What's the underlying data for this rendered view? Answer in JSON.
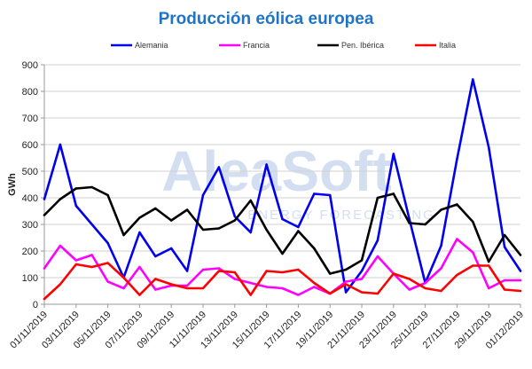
{
  "watermark": {
    "brand": "AleaSoft",
    "tagline": "ENERGY FORECASTING"
  },
  "chart_data": {
    "type": "line",
    "title": "Producción eólica europea",
    "xlabel": "",
    "ylabel": "GWh",
    "ylim": [
      0,
      900
    ],
    "yticks": [
      0,
      100,
      200,
      300,
      400,
      500,
      600,
      700,
      800,
      900
    ],
    "grid": true,
    "legend_position": "top",
    "x": [
      "01/11/2019",
      "02/11/2019",
      "03/11/2019",
      "04/11/2019",
      "05/11/2019",
      "06/11/2019",
      "07/11/2019",
      "08/11/2019",
      "09/11/2019",
      "10/11/2019",
      "11/11/2019",
      "12/11/2019",
      "13/11/2019",
      "14/11/2019",
      "15/11/2019",
      "16/11/2019",
      "17/11/2019",
      "18/11/2019",
      "19/11/2019",
      "20/11/2019",
      "21/11/2019",
      "22/11/2019",
      "23/11/2019",
      "24/11/2019",
      "25/11/2019",
      "26/11/2019",
      "27/11/2019",
      "28/11/2019",
      "29/11/2019",
      "30/11/2019",
      "01/12/2019"
    ],
    "xtick_labels": [
      "01/11/2019",
      "03/11/2019",
      "05/11/2019",
      "07/11/2019",
      "09/11/2019",
      "11/11/2019",
      "13/11/2019",
      "15/11/2019",
      "17/11/2019",
      "19/11/2019",
      "21/11/2019",
      "23/11/2019",
      "25/11/2019",
      "27/11/2019",
      "29/11/2019",
      "01/12/2019"
    ],
    "xtick_values": [
      "01/11/2019",
      "03/11/2019",
      "05/11/2019",
      "07/11/2019",
      "09/11/2019",
      "11/11/2019",
      "13/11/2019",
      "15/11/2019",
      "17/11/2019",
      "19/11/2019",
      "21/11/2019",
      "23/11/2019",
      "25/11/2019",
      "27/11/2019",
      "29/11/2019",
      "01/12/2019"
    ],
    "series": [
      {
        "name": "Alemania",
        "color": "#0000ee",
        "values": [
          395,
          600,
          370,
          300,
          230,
          100,
          270,
          180,
          210,
          125,
          410,
          515,
          330,
          270,
          525,
          320,
          290,
          415,
          410,
          45,
          125,
          240,
          565,
          320,
          80,
          220,
          545,
          845,
          590,
          215,
          125
        ]
      },
      {
        "name": "Francia",
        "color": "#ff00ff",
        "values": [
          135,
          220,
          165,
          185,
          85,
          60,
          140,
          55,
          70,
          70,
          130,
          135,
          95,
          80,
          65,
          60,
          35,
          65,
          40,
          85,
          95,
          180,
          115,
          55,
          80,
          135,
          245,
          195,
          60,
          90,
          90
        ]
      },
      {
        "name": "Pen. Ibérica",
        "color": "#000000",
        "values": [
          335,
          395,
          435,
          440,
          410,
          260,
          325,
          360,
          315,
          355,
          280,
          285,
          315,
          390,
          280,
          190,
          275,
          210,
          115,
          130,
          165,
          400,
          415,
          305,
          300,
          355,
          375,
          310,
          160,
          260,
          185
        ]
      },
      {
        "name": "Italia",
        "color": "#ff0000",
        "values": [
          20,
          75,
          150,
          140,
          155,
          100,
          35,
          95,
          75,
          60,
          60,
          125,
          120,
          35,
          125,
          120,
          130,
          80,
          40,
          75,
          45,
          40,
          115,
          95,
          60,
          50,
          110,
          145,
          145,
          55,
          50
        ]
      }
    ]
  }
}
